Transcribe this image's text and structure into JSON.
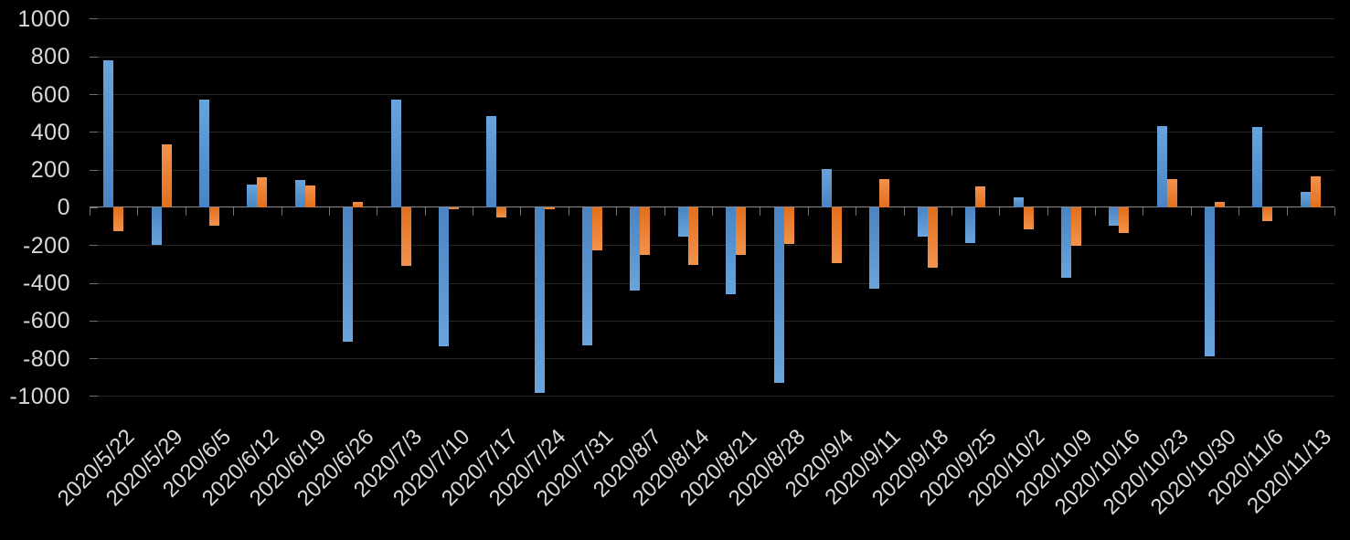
{
  "chart_data": {
    "type": "bar",
    "title": "",
    "xlabel": "",
    "ylabel": "",
    "legend_position": "none",
    "grid": true,
    "ylim": [
      -1000,
      1000
    ],
    "ytick_step": 200,
    "ytick_labels": [
      "1000",
      "800",
      "600",
      "400",
      "200",
      "0",
      "-200",
      "-400",
      "-600",
      "-800",
      "-1000"
    ],
    "categories": [
      "2020/5/22",
      "2020/5/29",
      "2020/6/5",
      "2020/6/12",
      "2020/6/19",
      "2020/6/26",
      "2020/7/3",
      "2020/7/10",
      "2020/7/17",
      "2020/7/24",
      "2020/7/31",
      "2020/8/7",
      "2020/8/14",
      "2020/8/21",
      "2020/8/28",
      "2020/9/4",
      "2020/9/11",
      "2020/9/18",
      "2020/9/25",
      "2020/10/2",
      "2020/10/9",
      "2020/10/16",
      "2020/10/23",
      "2020/10/30",
      "2020/11/6",
      "2020/11/13"
    ],
    "series": [
      {
        "name": "blue",
        "color": "#5B9BD5",
        "color_light": "#69A4DC",
        "color_dark": "#4A84C2",
        "values": [
          780,
          -200,
          570,
          120,
          145,
          -710,
          570,
          -735,
          485,
          -985,
          -730,
          -440,
          -155,
          -460,
          -930,
          205,
          -430,
          -155,
          -190,
          55,
          -375,
          -95,
          430,
          -790,
          425,
          80
        ]
      },
      {
        "name": "orange",
        "color": "#ED7D31",
        "color_light": "#F3924C",
        "color_dark": "#E26F1D",
        "values": [
          -125,
          335,
          -95,
          160,
          115,
          30,
          -310,
          -10,
          -55,
          -10,
          -230,
          -250,
          -305,
          -250,
          -195,
          -295,
          150,
          -320,
          110,
          -115,
          -205,
          -135,
          150,
          30,
          -75,
          165
        ]
      }
    ],
    "colors": {
      "background": "#000000",
      "axis_line": "#8c8c8c",
      "tick": "#6f6f6f",
      "gridline": "#262626",
      "label_text": "#d9d9d9"
    }
  }
}
